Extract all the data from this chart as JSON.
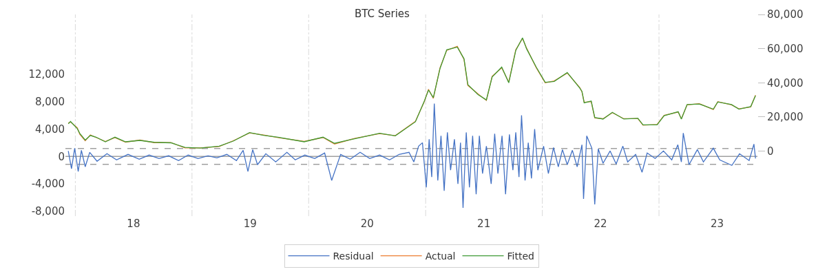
{
  "chart_data": {
    "type": "line",
    "title": "BTC Series",
    "xlim": [
      "2017-12-01",
      "2023-11-05"
    ],
    "xticks": [
      {
        "value": "2018-01-01",
        "label": null
      },
      {
        "value": "2018-07-02",
        "label": "18"
      },
      {
        "value": "2019-01-01",
        "label": null
      },
      {
        "value": "2019-07-02",
        "label": "19"
      },
      {
        "value": "2020-01-01",
        "label": null
      },
      {
        "value": "2020-07-02",
        "label": "20"
      },
      {
        "value": "2021-01-01",
        "label": null
      },
      {
        "value": "2021-07-02",
        "label": "21"
      },
      {
        "value": "2022-01-01",
        "label": null
      },
      {
        "value": "2022-07-02",
        "label": "22"
      },
      {
        "value": "2023-01-01",
        "label": null
      },
      {
        "value": "2023-07-02",
        "label": "23"
      }
    ],
    "ylim": [
      -8700,
      20700
    ],
    "yticks": [
      {
        "value": -8000,
        "label": "-8,000"
      },
      {
        "value": -4000,
        "label": "-4,000"
      },
      0,
      {
        "value": 4000,
        "label": "4,000"
      },
      {
        "value": 8000,
        "label": "8,000"
      },
      {
        "value": 12000,
        "label": "12,000"
      }
    ],
    "y2lim": [
      -38000,
      80000
    ],
    "y2ticks": [
      0,
      {
        "value": 20000,
        "label": "20,000"
      },
      {
        "value": 40000,
        "label": "40,000"
      },
      {
        "value": 60000,
        "label": "60,000"
      },
      {
        "value": 80000,
        "label": "80,000"
      }
    ],
    "grid": "x",
    "legend": "bottom",
    "ref_lines": [
      {
        "axis": "y",
        "value": 0,
        "color": "#a0a0a0",
        "line_style": "solid"
      },
      {
        "axis": "y",
        "value": 1150,
        "color": "#a0a0a0",
        "line_style": "dashed"
      },
      {
        "axis": "y",
        "value": -1150,
        "color": "#a0a0a0",
        "line_style": "dashed"
      }
    ],
    "series": [
      {
        "name": "Residual",
        "color": "#4472c4",
        "axis": "y",
        "x": [
          "2017-12-10",
          "2017-12-20",
          "2017-12-30",
          "2018-01-10",
          "2018-01-20",
          "2018-02-01",
          "2018-02-15",
          "2018-03-10",
          "2018-04-10",
          "2018-05-10",
          "2018-06-15",
          "2018-07-20",
          "2018-08-20",
          "2018-09-20",
          "2018-10-20",
          "2018-11-20",
          "2018-12-20",
          "2019-01-20",
          "2019-02-20",
          "2019-03-20",
          "2019-04-20",
          "2019-05-20",
          "2019-06-10",
          "2019-06-25",
          "2019-07-10",
          "2019-07-25",
          "2019-08-20",
          "2019-09-20",
          "2019-10-25",
          "2019-11-20",
          "2019-12-20",
          "2020-01-20",
          "2020-02-20",
          "2020-03-13",
          "2020-04-10",
          "2020-05-10",
          "2020-06-10",
          "2020-07-10",
          "2020-08-10",
          "2020-09-10",
          "2020-10-10",
          "2020-11-10",
          "2020-11-25",
          "2020-12-10",
          "2020-12-22",
          "2021-01-03",
          "2021-01-12",
          "2021-01-20",
          "2021-01-28",
          "2021-02-08",
          "2021-02-18",
          "2021-02-28",
          "2021-03-10",
          "2021-03-20",
          "2021-04-01",
          "2021-04-12",
          "2021-04-20",
          "2021-04-28",
          "2021-05-08",
          "2021-05-18",
          "2021-05-28",
          "2021-06-08",
          "2021-06-18",
          "2021-06-28",
          "2021-07-10",
          "2021-07-25",
          "2021-08-05",
          "2021-08-15",
          "2021-08-28",
          "2021-09-08",
          "2021-09-20",
          "2021-10-01",
          "2021-10-10",
          "2021-10-20",
          "2021-10-28",
          "2021-11-08",
          "2021-11-18",
          "2021-11-28",
          "2021-12-08",
          "2021-12-18",
          "2022-01-05",
          "2022-01-20",
          "2022-02-05",
          "2022-02-20",
          "2022-03-05",
          "2022-03-20",
          "2022-04-05",
          "2022-04-20",
          "2022-05-05",
          "2022-05-10",
          "2022-05-20",
          "2022-06-05",
          "2022-06-14",
          "2022-06-25",
          "2022-07-10",
          "2022-08-01",
          "2022-08-20",
          "2022-09-10",
          "2022-09-25",
          "2022-10-20",
          "2022-11-09",
          "2022-11-25",
          "2022-12-20",
          "2023-01-15",
          "2023-02-10",
          "2023-03-01",
          "2023-03-12",
          "2023-03-18",
          "2023-04-05",
          "2023-05-01",
          "2023-05-20",
          "2023-06-20",
          "2023-07-10",
          "2023-08-17",
          "2023-09-10",
          "2023-10-10",
          "2023-10-25",
          "2023-10-30"
        ],
        "values": [
          800,
          -1800,
          1200,
          -2200,
          900,
          -1500,
          600,
          -700,
          400,
          -500,
          300,
          -400,
          200,
          -300,
          100,
          -600,
          200,
          -300,
          100,
          -200,
          300,
          -600,
          900,
          -2200,
          1000,
          -1200,
          400,
          -800,
          600,
          -500,
          200,
          -300,
          500,
          -3500,
          300,
          -400,
          600,
          -300,
          200,
          -500,
          300,
          600,
          -800,
          1500,
          2000,
          -4500,
          2500,
          -3000,
          7700,
          -3500,
          3000,
          -5000,
          3500,
          -2000,
          2500,
          -4000,
          2000,
          -7500,
          3500,
          -4500,
          3000,
          -5500,
          3000,
          -2500,
          1500,
          -4000,
          3300,
          -2500,
          3000,
          -5500,
          3200,
          -2000,
          3500,
          -3000,
          6000,
          -3500,
          2000,
          -3200,
          4000,
          -2000,
          1500,
          -2500,
          1300,
          -1500,
          1000,
          -1200,
          900,
          -1500,
          1700,
          -6200,
          3000,
          1200,
          -7000,
          1100,
          -1000,
          800,
          -1100,
          1500,
          -800,
          300,
          -2300,
          500,
          -300,
          800,
          -500,
          1700,
          -800,
          3400,
          -1200,
          1000,
          -800,
          1200,
          -500,
          -1300,
          400,
          -600,
          1800,
          -300
        ]
      },
      {
        "name": "Actual",
        "color": "#ed7d31",
        "axis": "y2",
        "x": [
          "2017-12-10",
          "2017-12-17",
          "2018-01-07",
          "2018-01-15",
          "2018-02-01",
          "2018-02-17",
          "2018-03-07",
          "2018-04-05",
          "2018-05-05",
          "2018-06-07",
          "2018-07-22",
          "2018-09-05",
          "2018-10-27",
          "2018-12-10",
          "2019-01-27",
          "2019-03-27",
          "2019-05-10",
          "2019-06-30",
          "2019-08-13",
          "2019-09-27",
          "2019-12-18",
          "2020-02-15",
          "2020-03-22",
          "2020-05-26",
          "2020-08-10",
          "2020-09-28",
          "2020-11-30",
          "2020-12-27",
          "2021-01-10",
          "2021-01-25",
          "2021-02-15",
          "2021-03-08",
          "2021-04-10",
          "2021-05-01",
          "2021-05-13",
          "2021-06-14",
          "2021-07-10",
          "2021-07-28",
          "2021-08-27",
          "2021-09-18",
          "2021-10-10",
          "2021-10-31",
          "2021-11-13",
          "2021-12-13",
          "2022-01-10",
          "2022-02-07",
          "2022-03-20",
          "2022-04-28",
          "2022-05-05",
          "2022-05-12",
          "2022-06-03",
          "2022-06-14",
          "2022-07-10",
          "2022-08-08",
          "2022-09-13",
          "2022-10-27",
          "2022-11-12",
          "2022-12-26",
          "2023-01-17",
          "2023-03-02",
          "2023-03-12",
          "2023-03-30",
          "2023-05-07",
          "2023-06-20",
          "2023-07-04",
          "2023-08-16",
          "2023-09-08",
          "2023-10-15",
          "2023-10-30"
        ],
        "values": [
          16400,
          17100,
          13700,
          9900,
          6100,
          9500,
          8000,
          5700,
          8000,
          5300,
          6500,
          5000,
          5000,
          1900,
          1900,
          2700,
          6100,
          10700,
          9500,
          8000,
          5700,
          8000,
          4200,
          7600,
          10300,
          9100,
          17500,
          28600,
          36200,
          30900,
          48800,
          59000,
          61300,
          53700,
          38500,
          33500,
          29700,
          43800,
          48800,
          40400,
          59400,
          65900,
          60200,
          48800,
          40000,
          41100,
          45700,
          37300,
          34700,
          28600,
          29000,
          19400,
          19000,
          22500,
          19000,
          19000,
          15200,
          15600,
          21000,
          22900,
          19000,
          27100,
          27800,
          24400,
          29000,
          27100,
          24800,
          25900,
          32800
        ]
      },
      {
        "name": "Fitted",
        "color": "#3f9b35",
        "axis": "y2",
        "x": [
          "2017-12-10",
          "2017-12-17",
          "2018-01-07",
          "2018-01-15",
          "2018-02-01",
          "2018-02-17",
          "2018-03-07",
          "2018-04-05",
          "2018-05-05",
          "2018-06-07",
          "2018-07-22",
          "2018-09-05",
          "2018-10-27",
          "2018-12-10",
          "2019-01-27",
          "2019-03-27",
          "2019-05-10",
          "2019-06-30",
          "2019-08-13",
          "2019-09-27",
          "2019-12-18",
          "2020-02-15",
          "2020-03-22",
          "2020-05-26",
          "2020-08-10",
          "2020-09-28",
          "2020-11-30",
          "2020-12-27",
          "2021-01-10",
          "2021-01-25",
          "2021-02-15",
          "2021-03-08",
          "2021-04-10",
          "2021-05-01",
          "2021-05-13",
          "2021-06-14",
          "2021-07-10",
          "2021-07-28",
          "2021-08-27",
          "2021-09-18",
          "2021-10-10",
          "2021-10-31",
          "2021-11-13",
          "2021-12-13",
          "2022-01-10",
          "2022-02-07",
          "2022-03-20",
          "2022-04-28",
          "2022-05-05",
          "2022-05-12",
          "2022-06-03",
          "2022-06-14",
          "2022-07-10",
          "2022-08-08",
          "2022-09-13",
          "2022-10-27",
          "2022-11-12",
          "2022-12-26",
          "2023-01-17",
          "2023-03-02",
          "2023-03-12",
          "2023-03-30",
          "2023-05-07",
          "2023-06-20",
          "2023-07-04",
          "2023-08-16",
          "2023-09-08",
          "2023-10-15",
          "2023-10-30"
        ],
        "values": [
          16000,
          17400,
          13200,
          10400,
          6500,
          9200,
          8200,
          5500,
          8200,
          5500,
          6300,
          5200,
          4900,
          2200,
          1800,
          2900,
          5900,
          10900,
          9300,
          8200,
          5500,
          8200,
          4600,
          7400,
          10500,
          9000,
          17200,
          28900,
          35800,
          31300,
          48400,
          59300,
          60900,
          54100,
          38900,
          33100,
          30000,
          43400,
          49200,
          40000,
          59000,
          66300,
          59800,
          49200,
          40300,
          40800,
          46000,
          37000,
          35000,
          28300,
          29300,
          19700,
          18800,
          22700,
          18800,
          19200,
          15400,
          15400,
          20800,
          23100,
          18800,
          27300,
          27600,
          24600,
          28800,
          27300,
          24600,
          26100,
          32500
        ]
      }
    ]
  }
}
